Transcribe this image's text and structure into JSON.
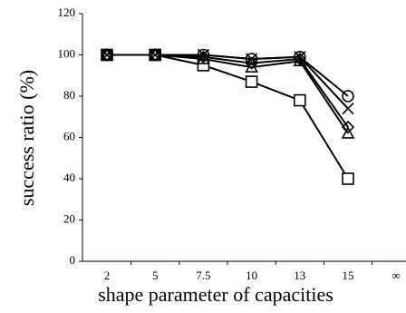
{
  "chart_data": {
    "type": "line",
    "y_label": "success ratio (%)",
    "x_label": "shape parameter of capacities",
    "categories": [
      "2",
      "5",
      "7.5",
      "10",
      "13",
      "15",
      "∞"
    ],
    "ylim": [
      0,
      120
    ],
    "yticks": [
      0,
      20,
      40,
      60,
      80,
      100,
      120
    ],
    "series": [
      {
        "color": "#000000",
        "marker": "square",
        "values": [
          100,
          100,
          95,
          87,
          78,
          40,
          null
        ]
      },
      {
        "color": "#000000",
        "marker": "circle",
        "values": [
          100,
          100,
          100,
          98,
          99,
          80,
          null
        ]
      },
      {
        "color": "#000000",
        "marker": "cross",
        "values": [
          100,
          100,
          100,
          98,
          99,
          74,
          null
        ]
      },
      {
        "color": "#000000",
        "marker": "diamond",
        "values": [
          100,
          100,
          99,
          96,
          98,
          65,
          null
        ]
      },
      {
        "color": "#000000",
        "marker": "triangle",
        "values": [
          100,
          100,
          98,
          94,
          97,
          62,
          null
        ]
      }
    ]
  }
}
